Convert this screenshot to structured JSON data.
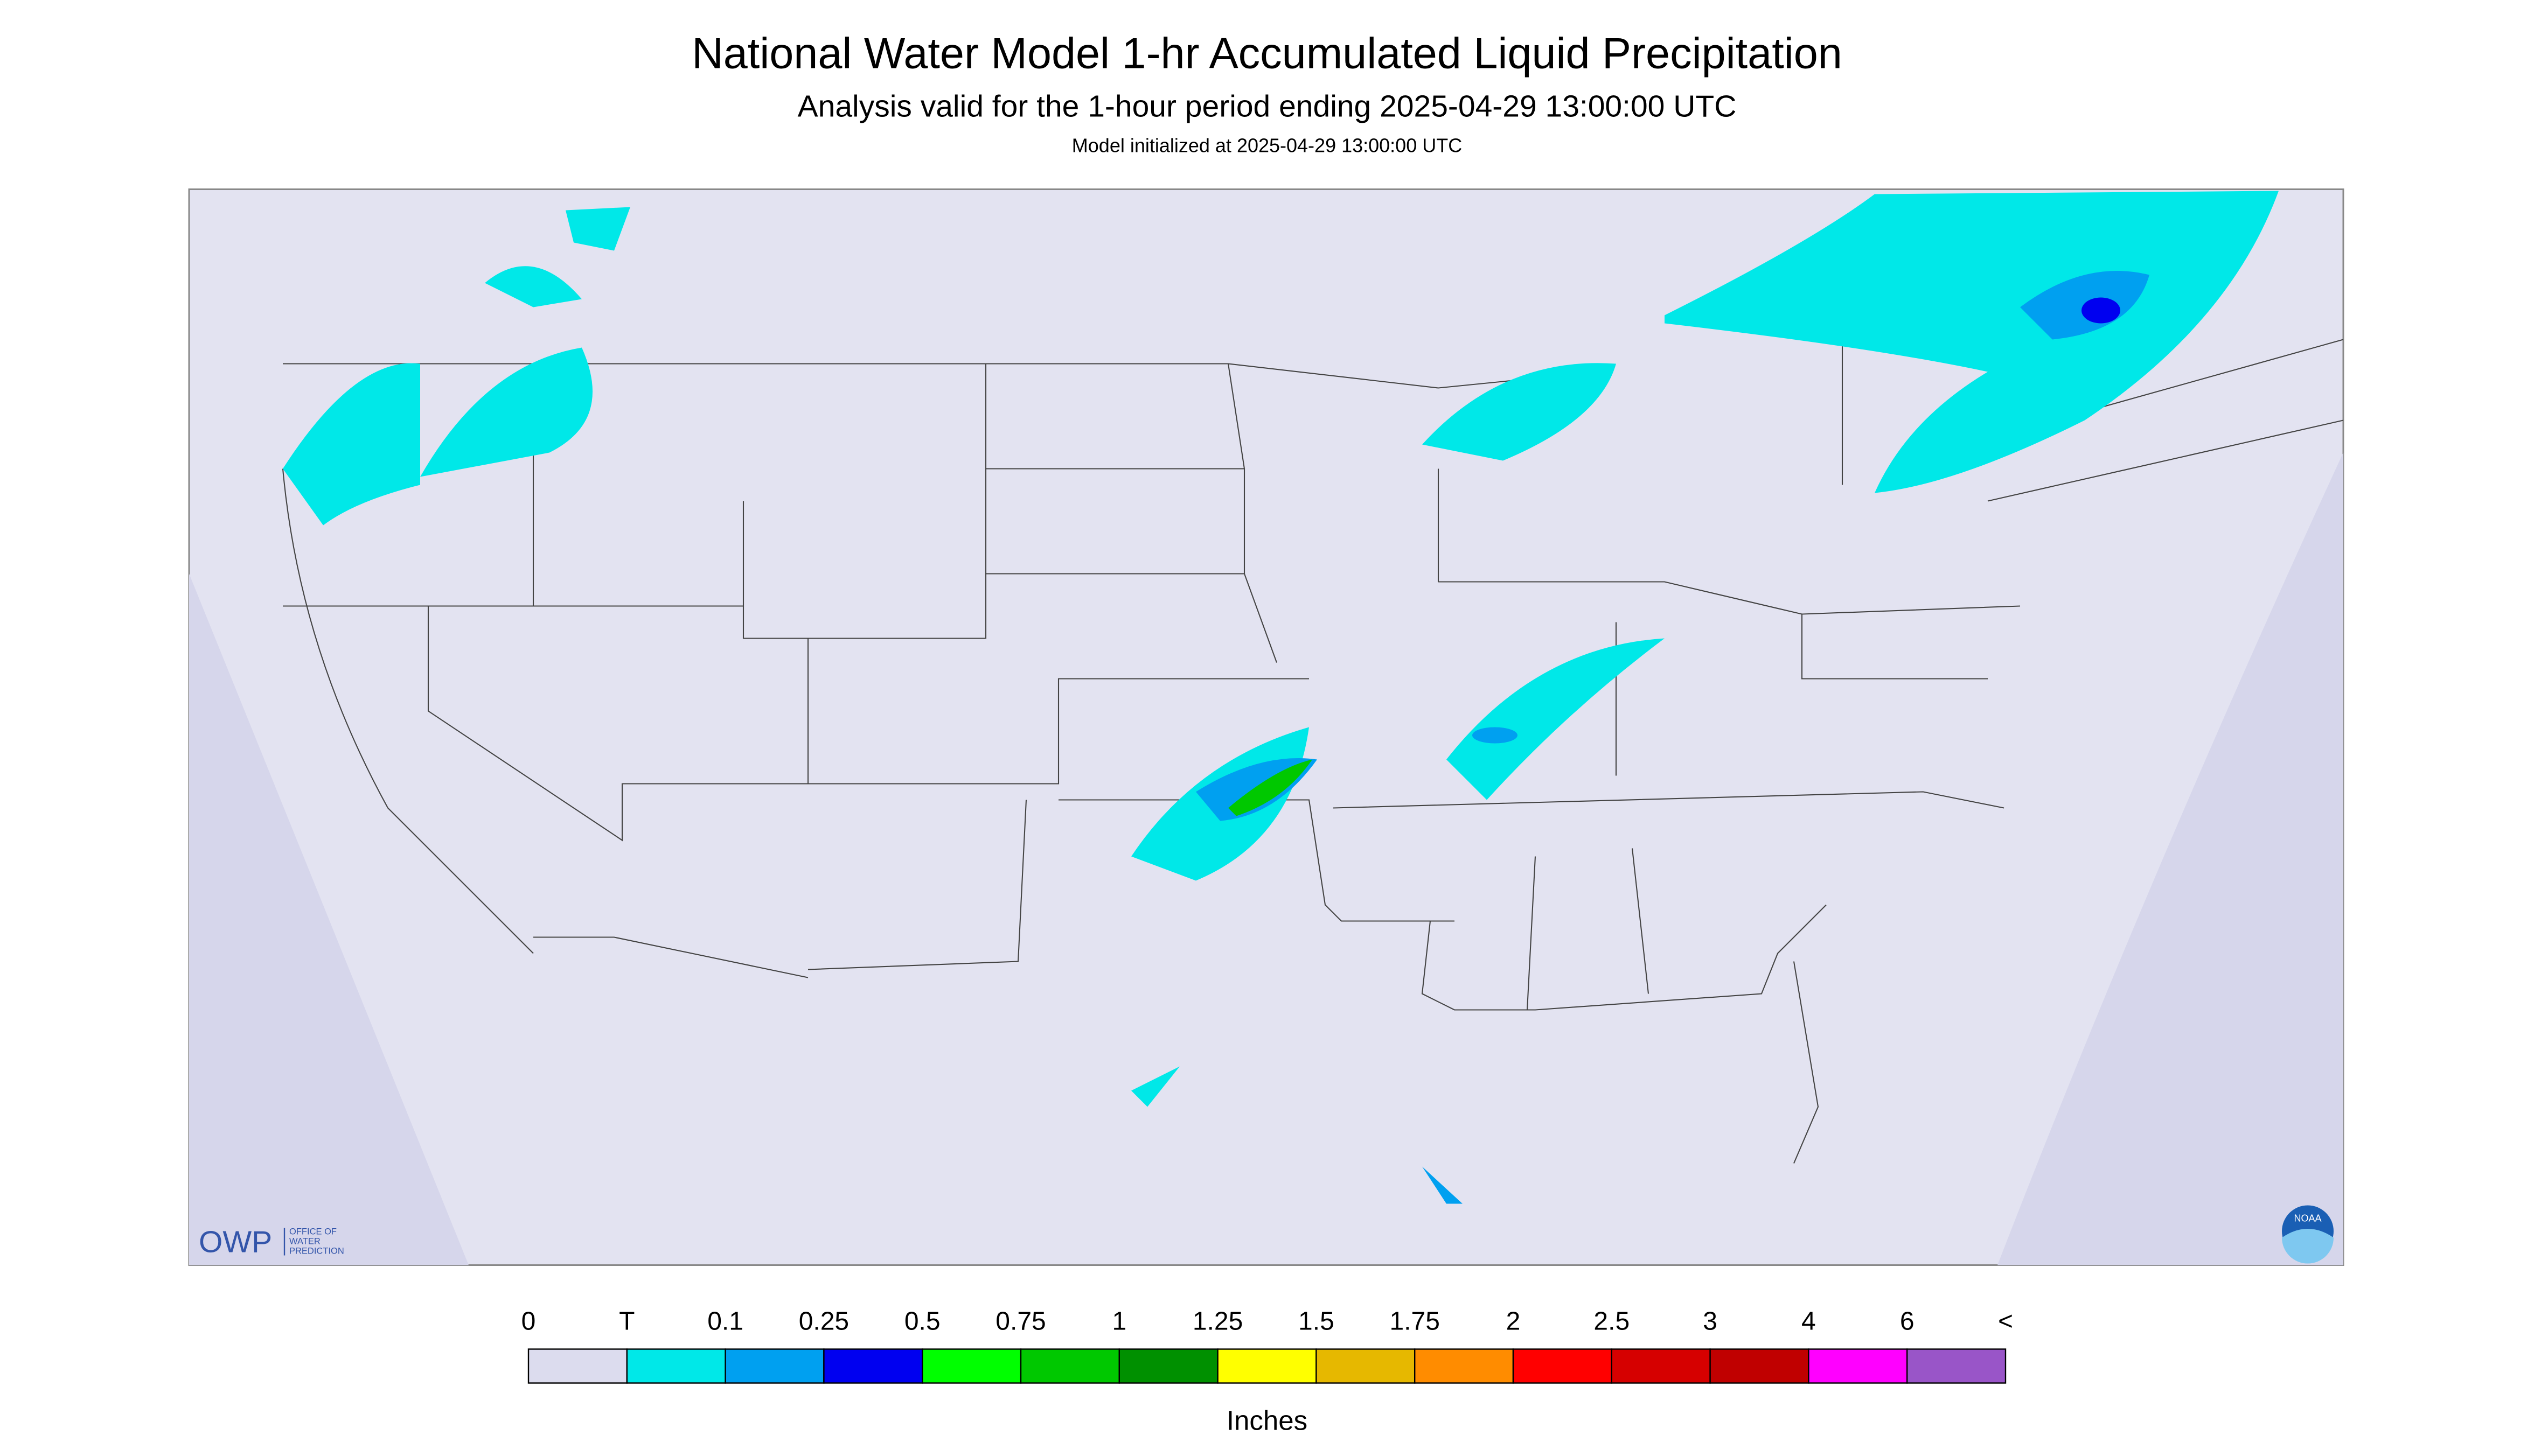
{
  "header": {
    "title": "National Water Model 1-hr Accumulated Liquid Precipitation",
    "subtitle": "Analysis valid for the 1-hour period ending 2025-04-29 13:00:00 UTC",
    "note": "Model initialized at 2025-04-29 13:00:00 UTC"
  },
  "legend": {
    "labels": [
      "0",
      "T",
      "0.1",
      "0.25",
      "0.5",
      "0.75",
      "1",
      "1.25",
      "1.5",
      "1.75",
      "2",
      "2.5",
      "3",
      "4",
      "6",
      "<"
    ],
    "colors": [
      "#dcdcee",
      "#00e8e8",
      "#00a0f0",
      "#0000f0",
      "#00ff00",
      "#00c800",
      "#009000",
      "#ffff00",
      "#e6b800",
      "#ff8c00",
      "#ff0000",
      "#d60000",
      "#c00000",
      "#ff00ff",
      "#9955c8"
    ],
    "unit": "Inches"
  },
  "logos": {
    "owp": "OWP",
    "owp_full": [
      "OFFICE OF",
      "WATER",
      "PREDICTION"
    ],
    "noaa": "NOAA"
  }
}
